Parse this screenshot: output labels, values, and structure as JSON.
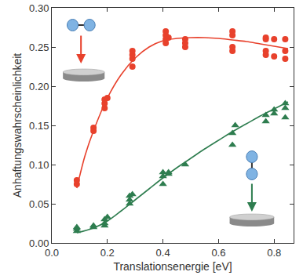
{
  "chart_data": {
    "type": "scatter",
    "x_label": "Translationsenergie [eV]",
    "y_label": "Anhaftungswahrscheinlichkeit",
    "xlim": [
      0,
      0.87
    ],
    "ylim": [
      0,
      0.3
    ],
    "xticks": [
      {
        "value": 0,
        "label": "0.0"
      },
      0.2,
      0.4,
      0.6,
      0.8
    ],
    "yticks": [
      {
        "value": 0,
        "label": "0.00"
      },
      0.05,
      {
        "value": 0.1,
        "label": "0.10"
      },
      0.15,
      {
        "value": 0.2,
        "label": "0.20"
      },
      0.25,
      {
        "value": 0.3,
        "label": "0.30"
      }
    ],
    "grid": false,
    "series": [
      {
        "type": "scatter",
        "color": "#e8412c",
        "marker": "circle",
        "x": [
          0.09,
          0.09,
          0.15,
          0.15,
          0.19,
          0.19,
          0.19,
          0.2,
          0.29,
          0.29,
          0.29,
          0.29,
          0.41,
          0.41,
          0.41,
          0.41,
          0.42,
          0.48,
          0.48,
          0.48,
          0.65,
          0.65,
          0.65,
          0.65,
          0.77,
          0.77,
          0.77,
          0.77,
          0.8,
          0.8,
          0.84,
          0.84,
          0.84
        ],
        "values": [
          0.075,
          0.08,
          0.143,
          0.147,
          0.172,
          0.178,
          0.183,
          0.185,
          0.225,
          0.235,
          0.24,
          0.245,
          0.255,
          0.26,
          0.265,
          0.27,
          0.262,
          0.25,
          0.255,
          0.26,
          0.245,
          0.25,
          0.265,
          0.27,
          0.24,
          0.245,
          0.26,
          0.262,
          0.238,
          0.26,
          0.235,
          0.245,
          0.26
        ]
      },
      {
        "type": "line",
        "color": "#e8412c",
        "line_style": "solid",
        "x": [
          0.09,
          0.12,
          0.15,
          0.2,
          0.25,
          0.3,
          0.35,
          0.4,
          0.45,
          0.5,
          0.55,
          0.6,
          0.65,
          0.7,
          0.75,
          0.8,
          0.85
        ],
        "values": [
          0.07,
          0.112,
          0.143,
          0.185,
          0.215,
          0.236,
          0.25,
          0.258,
          0.261,
          0.262,
          0.262,
          0.261,
          0.259,
          0.257,
          0.254,
          0.251,
          0.248
        ]
      },
      {
        "type": "scatter",
        "color": "#2e7d4f",
        "marker": "triangle",
        "x": [
          0.09,
          0.09,
          0.09,
          0.15,
          0.15,
          0.19,
          0.19,
          0.19,
          0.2,
          0.28,
          0.28,
          0.28,
          0.29,
          0.4,
          0.4,
          0.4,
          0.42,
          0.42,
          0.48,
          0.65,
          0.65,
          0.66,
          0.77,
          0.77,
          0.8,
          0.8,
          0.84,
          0.84,
          0.84
        ],
        "values": [
          0.015,
          0.018,
          0.02,
          0.02,
          0.022,
          0.022,
          0.025,
          0.03,
          0.033,
          0.05,
          0.055,
          0.06,
          0.062,
          0.075,
          0.085,
          0.09,
          0.088,
          0.09,
          0.1,
          0.125,
          0.14,
          0.15,
          0.155,
          0.163,
          0.165,
          0.17,
          0.16,
          0.172,
          0.178
        ]
      },
      {
        "type": "line",
        "color": "#2e7d4f",
        "line_style": "solid",
        "x": [
          0.09,
          0.15,
          0.2,
          0.25,
          0.3,
          0.35,
          0.4,
          0.45,
          0.5,
          0.55,
          0.6,
          0.65,
          0.7,
          0.75,
          0.8,
          0.85
        ],
        "values": [
          0.013,
          0.019,
          0.028,
          0.041,
          0.055,
          0.069,
          0.083,
          0.096,
          0.108,
          0.12,
          0.131,
          0.142,
          0.152,
          0.162,
          0.171,
          0.18
        ]
      }
    ]
  }
}
